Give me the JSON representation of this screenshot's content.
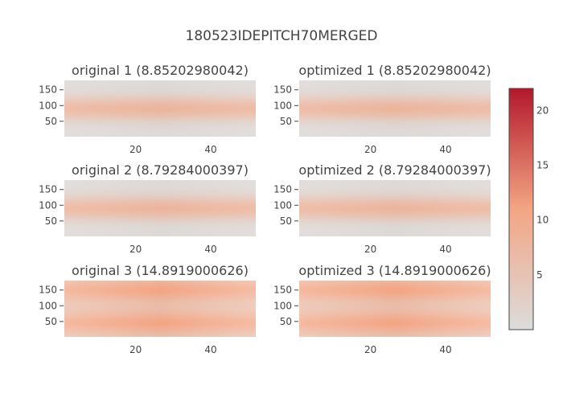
{
  "chart_data": {
    "type": "heatmap",
    "title": "180523IDEPITCH70MERGED",
    "colorscale": [
      "#dcdcdc",
      "#f3a583",
      "#b2182b"
    ],
    "colorbar": {
      "min": 0,
      "max": 22,
      "ticks": [
        5,
        10,
        15,
        20
      ]
    },
    "panels": [
      {
        "title": "original 1 (8.85202980042)",
        "peak": 8.85,
        "profile": "single"
      },
      {
        "title": "optimized 1 (8.85202980042)",
        "peak": 8.85,
        "profile": "single"
      },
      {
        "title": "original 2 (8.79284000397)",
        "peak": 8.79,
        "profile": "single"
      },
      {
        "title": "optimized 2 (8.79284000397)",
        "peak": 8.79,
        "profile": "single"
      },
      {
        "title": "original 3 (14.8919000626)",
        "peak": 14.89,
        "profile": "double"
      },
      {
        "title": "optimized 3 (14.8919000626)",
        "peak": 14.89,
        "profile": "double"
      }
    ],
    "xaxis": {
      "range": [
        1,
        52
      ],
      "ticks": [
        20,
        40
      ]
    },
    "yaxis": {
      "range": [
        1,
        180
      ],
      "ticks": [
        50,
        100,
        150
      ]
    }
  }
}
